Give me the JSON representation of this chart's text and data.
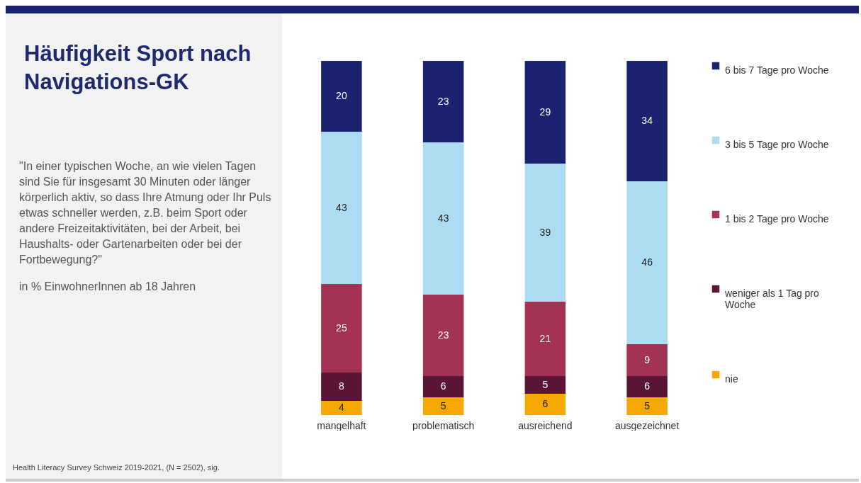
{
  "chart_data": {
    "type": "bar",
    "stacked": true,
    "data_labels": true,
    "legend": "right",
    "title": "Häufigkeit Sport nach Navigations-GK",
    "annotations": [
      "\"In einer typischen Woche, an wie vielen Tagen sind Sie für insgesamt 30 Minuten oder länger körperlich aktiv, so dass Ihre Atmung oder Ihr Puls etwas schneller werden, z.B. beim Sport oder andere Freizeitaktivitäten, bei der Arbeit, bei Haushalts- oder Gartenarbeiten oder bei der Fortbewegung?\"",
      "in % EinwohnerInnen ab 18 Jahren",
      "Health Literacy Survey Schweiz 2019-2021, (N = 2502), sig."
    ],
    "categories": [
      "mangelhaft",
      "problematisch",
      "ausreichend",
      "ausgezeichnet"
    ],
    "series": [
      {
        "name": "nie",
        "color": "#f5a800",
        "values": [
          4,
          5,
          6,
          5
        ]
      },
      {
        "name": "weniger als 1 Tag pro Woche",
        "color": "#5a1535",
        "values": [
          8,
          6,
          5,
          6
        ]
      },
      {
        "name": "1 bis 2 Tage pro Woche",
        "color": "#a23352",
        "values": [
          25,
          23,
          21,
          9
        ]
      },
      {
        "name": "3 bis 5 Tage pro Woche",
        "color": "#addcf2",
        "values": [
          43,
          43,
          39,
          46
        ]
      },
      {
        "name": "6 bis 7 Tage pro Woche",
        "color": "#1b2371",
        "values": [
          20,
          23,
          29,
          34
        ]
      }
    ]
  }
}
